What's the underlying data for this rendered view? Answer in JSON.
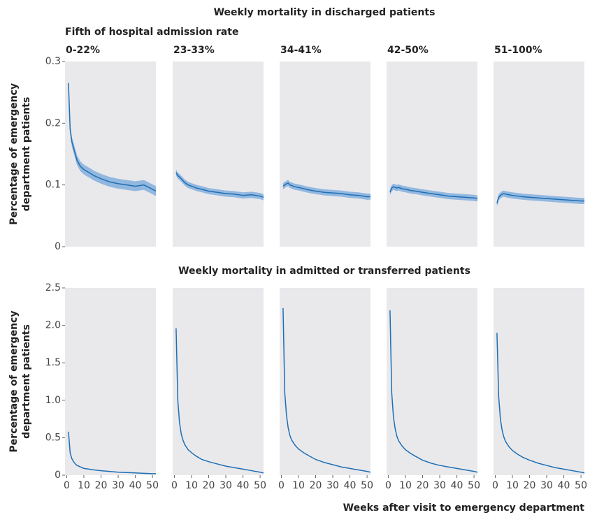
{
  "chart_data": [
    {
      "type": "line",
      "title": "Weekly mortality in discharged patients",
      "subtitle": "Fifth of hospital admission rate",
      "y_label": [
        "Percentage of emergency",
        "department patients"
      ],
      "x": [
        1,
        2,
        3,
        4,
        5,
        6,
        8,
        10,
        13,
        16,
        20,
        25,
        30,
        35,
        40,
        45,
        50,
        52
      ],
      "xlim": [
        -1,
        52
      ],
      "ylim": [
        0,
        0.3
      ],
      "yticks": [
        0,
        0.1,
        0.2,
        0.3
      ],
      "grid": false,
      "color": "#1f6fb4",
      "band_color": "#93b8e0",
      "panel_color": "#e9e9ec",
      "series": [
        {
          "name": "0-22%",
          "values": [
            0.265,
            0.19,
            0.17,
            0.16,
            0.15,
            0.14,
            0.13,
            0.125,
            0.12,
            0.115,
            0.11,
            0.105,
            0.102,
            0.1,
            0.098,
            0.1,
            0.093,
            0.09
          ],
          "lower": [
            0.257,
            0.182,
            0.162,
            0.152,
            0.142,
            0.132,
            0.122,
            0.117,
            0.112,
            0.107,
            0.102,
            0.097,
            0.094,
            0.092,
            0.09,
            0.092,
            0.085,
            0.082
          ],
          "upper": [
            0.273,
            0.198,
            0.178,
            0.168,
            0.158,
            0.148,
            0.138,
            0.133,
            0.128,
            0.123,
            0.118,
            0.113,
            0.11,
            0.108,
            0.106,
            0.108,
            0.101,
            0.098
          ]
        },
        {
          "name": "23-33%",
          "values": [
            0.12,
            0.115,
            0.113,
            0.11,
            0.107,
            0.104,
            0.1,
            0.098,
            0.095,
            0.093,
            0.09,
            0.088,
            0.086,
            0.085,
            0.083,
            0.084,
            0.082,
            0.08
          ],
          "lower": [
            0.115,
            0.11,
            0.108,
            0.105,
            0.102,
            0.099,
            0.095,
            0.093,
            0.09,
            0.088,
            0.085,
            0.083,
            0.081,
            0.08,
            0.078,
            0.079,
            0.077,
            0.075
          ],
          "upper": [
            0.125,
            0.12,
            0.118,
            0.115,
            0.112,
            0.109,
            0.105,
            0.103,
            0.1,
            0.098,
            0.095,
            0.093,
            0.091,
            0.09,
            0.088,
            0.089,
            0.087,
            0.085
          ]
        },
        {
          "name": "34-41%",
          "values": [
            0.098,
            0.1,
            0.102,
            0.103,
            0.1,
            0.099,
            0.097,
            0.096,
            0.094,
            0.092,
            0.09,
            0.088,
            0.087,
            0.086,
            0.084,
            0.083,
            0.081,
            0.081
          ],
          "lower": [
            0.093,
            0.095,
            0.097,
            0.098,
            0.095,
            0.094,
            0.092,
            0.091,
            0.089,
            0.087,
            0.085,
            0.083,
            0.082,
            0.081,
            0.079,
            0.078,
            0.076,
            0.076
          ],
          "upper": [
            0.103,
            0.105,
            0.107,
            0.108,
            0.105,
            0.104,
            0.102,
            0.101,
            0.099,
            0.097,
            0.095,
            0.093,
            0.092,
            0.091,
            0.089,
            0.088,
            0.086,
            0.086
          ]
        },
        {
          "name": "42-50%",
          "values": [
            0.088,
            0.095,
            0.097,
            0.096,
            0.095,
            0.096,
            0.094,
            0.093,
            0.091,
            0.09,
            0.088,
            0.086,
            0.084,
            0.082,
            0.081,
            0.08,
            0.079,
            0.078
          ],
          "lower": [
            0.083,
            0.09,
            0.092,
            0.091,
            0.09,
            0.091,
            0.089,
            0.088,
            0.086,
            0.085,
            0.083,
            0.081,
            0.079,
            0.077,
            0.076,
            0.075,
            0.074,
            0.073
          ],
          "upper": [
            0.093,
            0.1,
            0.102,
            0.101,
            0.1,
            0.101,
            0.099,
            0.098,
            0.096,
            0.095,
            0.093,
            0.091,
            0.089,
            0.087,
            0.086,
            0.085,
            0.084,
            0.083
          ]
        },
        {
          "name": "51-100%",
          "values": [
            0.07,
            0.08,
            0.083,
            0.085,
            0.086,
            0.085,
            0.084,
            0.083,
            0.082,
            0.081,
            0.08,
            0.079,
            0.078,
            0.077,
            0.076,
            0.075,
            0.074,
            0.074
          ],
          "lower": [
            0.065,
            0.075,
            0.078,
            0.08,
            0.081,
            0.08,
            0.079,
            0.078,
            0.077,
            0.076,
            0.075,
            0.074,
            0.073,
            0.072,
            0.071,
            0.07,
            0.069,
            0.069
          ],
          "upper": [
            0.075,
            0.085,
            0.088,
            0.09,
            0.091,
            0.09,
            0.089,
            0.088,
            0.087,
            0.086,
            0.085,
            0.084,
            0.083,
            0.082,
            0.081,
            0.08,
            0.079,
            0.079
          ]
        }
      ]
    },
    {
      "type": "line",
      "title": "Weekly mortality in admitted or transferred patients",
      "y_label": [
        "Percentage of emergency",
        "department patients"
      ],
      "x_label": "Weeks after visit to emergency department",
      "x": [
        1,
        2,
        3,
        4,
        5,
        6,
        8,
        10,
        13,
        16,
        20,
        25,
        30,
        35,
        40,
        45,
        50,
        52
      ],
      "xlim": [
        -1,
        52
      ],
      "xticks": [
        0,
        10,
        20,
        30,
        40,
        50
      ],
      "ylim": [
        0,
        2.5
      ],
      "yticks": [
        0,
        0.5,
        {
          "value": 1,
          "label": "1.0"
        },
        1.5,
        {
          "value": 2,
          "label": "2.0"
        },
        2.5
      ],
      "grid": false,
      "color": "#1f6fb4",
      "panel_color": "#e9e9ec",
      "series": [
        {
          "values": [
            0.58,
            0.3,
            0.22,
            0.18,
            0.15,
            0.13,
            0.11,
            0.09,
            0.08,
            0.07,
            0.06,
            0.05,
            0.04,
            0.035,
            0.03,
            0.025,
            0.02,
            0.02
          ]
        },
        {
          "values": [
            1.96,
            1.0,
            0.7,
            0.55,
            0.47,
            0.41,
            0.34,
            0.3,
            0.25,
            0.21,
            0.18,
            0.15,
            0.12,
            0.1,
            0.08,
            0.06,
            0.04,
            0.03
          ]
        },
        {
          "values": [
            2.23,
            1.1,
            0.8,
            0.63,
            0.53,
            0.47,
            0.4,
            0.35,
            0.3,
            0.26,
            0.21,
            0.17,
            0.14,
            0.11,
            0.09,
            0.07,
            0.05,
            0.04
          ]
        },
        {
          "values": [
            2.2,
            1.1,
            0.78,
            0.62,
            0.52,
            0.46,
            0.39,
            0.34,
            0.29,
            0.25,
            0.2,
            0.16,
            0.13,
            0.11,
            0.09,
            0.07,
            0.05,
            0.04
          ]
        },
        {
          "values": [
            1.9,
            1.05,
            0.75,
            0.6,
            0.51,
            0.45,
            0.38,
            0.33,
            0.28,
            0.24,
            0.2,
            0.16,
            0.13,
            0.1,
            0.08,
            0.06,
            0.04,
            0.03
          ]
        }
      ]
    }
  ]
}
